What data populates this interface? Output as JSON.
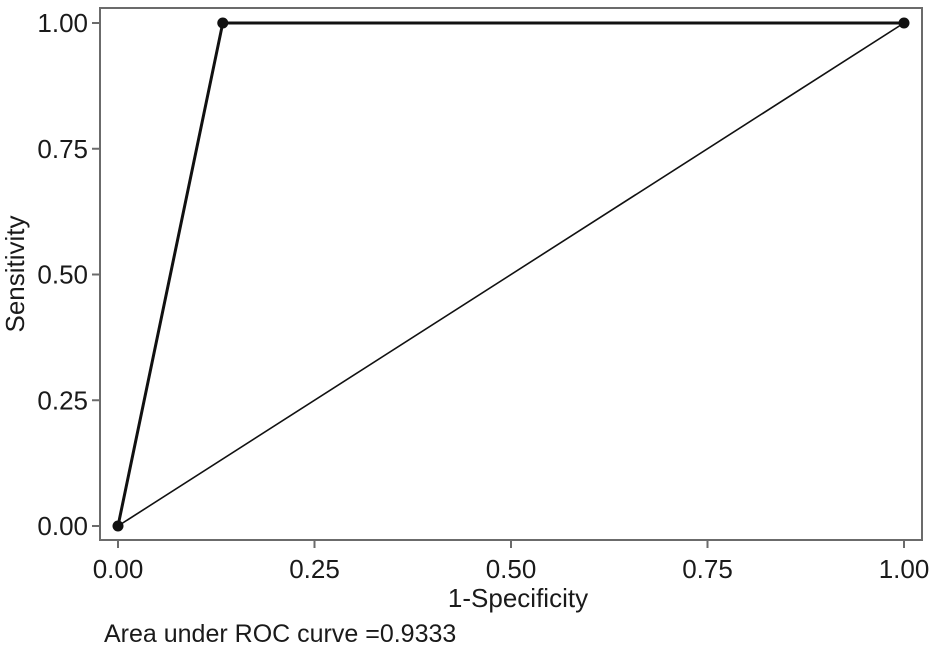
{
  "chart_data": {
    "type": "line",
    "xlabel": "1-Specificity",
    "ylabel": "Sensitivity",
    "xlim": [
      0,
      1
    ],
    "ylim": [
      0,
      1
    ],
    "x_ticks": [
      "0.00",
      "0.25",
      "0.50",
      "0.75",
      "1.00"
    ],
    "y_ticks": [
      "0.00",
      "0.25",
      "0.50",
      "0.75",
      "1.00"
    ],
    "grid": false,
    "series": [
      {
        "points": [
          [
            0,
            0
          ],
          [
            0.1333,
            1.0
          ],
          [
            1.0,
            1.0
          ]
        ],
        "markers": true
      },
      {
        "points": [
          [
            0,
            0
          ],
          [
            1.0,
            1.0
          ]
        ],
        "markers": false,
        "reference": true
      }
    ],
    "annotation": "Area under ROC curve =0.9333",
    "colors": {
      "line": "#111111",
      "frame": "#6b6b6b"
    }
  }
}
